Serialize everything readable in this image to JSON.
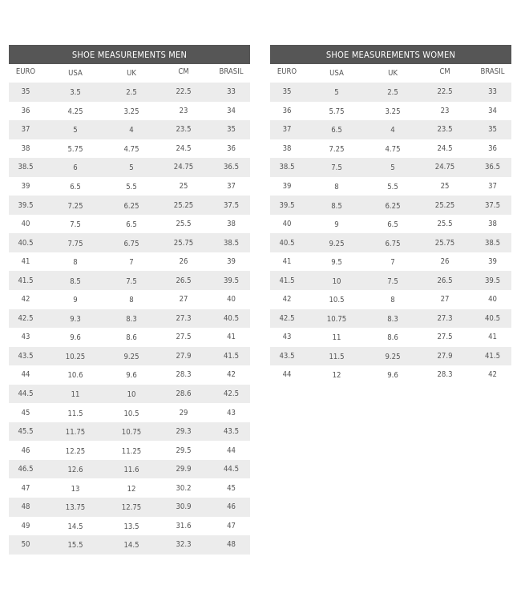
{
  "tables": [
    {
      "title": "SHOE MEASUREMENTS MEN",
      "columns": [
        "EURO",
        "USA",
        "UK",
        "CM",
        "BRASIL"
      ],
      "rows": [
        [
          "35",
          "3.5",
          "2.5",
          "22.5",
          "33"
        ],
        [
          "36",
          "4.25",
          "3.25",
          "23",
          "34"
        ],
        [
          "37",
          "5",
          "4",
          "23.5",
          "35"
        ],
        [
          "38",
          "5.75",
          "4.75",
          "24.5",
          "36"
        ],
        [
          "38.5",
          "6",
          "5",
          "24.75",
          "36.5"
        ],
        [
          "39",
          "6.5",
          "5.5",
          "25",
          "37"
        ],
        [
          "39.5",
          "7.25",
          "6.25",
          "25.25",
          "37.5"
        ],
        [
          "40",
          "7.5",
          "6.5",
          "25.5",
          "38"
        ],
        [
          "40.5",
          "7.75",
          "6.75",
          "25.75",
          "38.5"
        ],
        [
          "41",
          "8",
          "7",
          "26",
          "39"
        ],
        [
          "41.5",
          "8.5",
          "7.5",
          "26.5",
          "39.5"
        ],
        [
          "42",
          "9",
          "8",
          "27",
          "40"
        ],
        [
          "42.5",
          "9.3",
          "8.3",
          "27.3",
          "40.5"
        ],
        [
          "43",
          "9.6",
          "8.6",
          "27.5",
          "41"
        ],
        [
          "43.5",
          "10.25",
          "9.25",
          "27.9",
          "41.5"
        ],
        [
          "44",
          "10.6",
          "9.6",
          "28.3",
          "42"
        ],
        [
          "44.5",
          "11",
          "10",
          "28.6",
          "42.5"
        ],
        [
          "45",
          "11.5",
          "10.5",
          "29",
          "43"
        ],
        [
          "45.5",
          "11.75",
          "10.75",
          "29.3",
          "43.5"
        ],
        [
          "46",
          "12.25",
          "11.25",
          "29.5",
          "44"
        ],
        [
          "46.5",
          "12.6",
          "11.6",
          "29.9",
          "44.5"
        ],
        [
          "47",
          "13",
          "12",
          "30.2",
          "45"
        ],
        [
          "48",
          "13.75",
          "12.75",
          "30.9",
          "46"
        ],
        [
          "49",
          "14.5",
          "13.5",
          "31.6",
          "47"
        ],
        [
          "50",
          "15.5",
          "14.5",
          "32.3",
          "48"
        ]
      ]
    },
    {
      "title": "SHOE MEASUREMENTS WOMEN",
      "columns": [
        "EURO",
        "USA",
        "UK",
        "CM",
        "BRASIL"
      ],
      "rows": [
        [
          "35",
          "5",
          "2.5",
          "22.5",
          "33"
        ],
        [
          "36",
          "5.75",
          "3.25",
          "23",
          "34"
        ],
        [
          "37",
          "6.5",
          "4",
          "23.5",
          "35"
        ],
        [
          "38",
          "7.25",
          "4.75",
          "24.5",
          "36"
        ],
        [
          "38.5",
          "7.5",
          "5",
          "24.75",
          "36.5"
        ],
        [
          "39",
          "8",
          "5.5",
          "25",
          "37"
        ],
        [
          "39.5",
          "8.5",
          "6.25",
          "25.25",
          "37.5"
        ],
        [
          "40",
          "9",
          "6.5",
          "25.5",
          "38"
        ],
        [
          "40.5",
          "9.25",
          "6.75",
          "25.75",
          "38.5"
        ],
        [
          "41",
          "9.5",
          "7",
          "26",
          "39"
        ],
        [
          "41.5",
          "10",
          "7.5",
          "26.5",
          "39.5"
        ],
        [
          "42",
          "10.5",
          "8",
          "27",
          "40"
        ],
        [
          "42.5",
          "10.75",
          "8.3",
          "27.3",
          "40.5"
        ],
        [
          "43",
          "11",
          "8.6",
          "27.5",
          "41"
        ],
        [
          "43.5",
          "11.5",
          "9.25",
          "27.9",
          "41.5"
        ],
        [
          "44",
          "12",
          "9.6",
          "28.3",
          "42"
        ]
      ]
    }
  ],
  "colors": {
    "title_bar": "#565656",
    "shaded_row": "#ececec",
    "text": "#555555"
  }
}
